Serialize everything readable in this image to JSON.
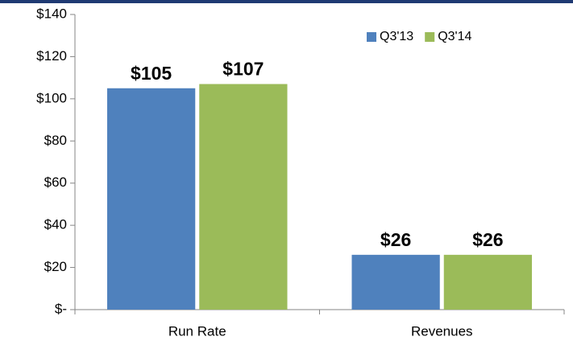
{
  "chart_data": {
    "type": "bar",
    "categories": [
      "Run Rate",
      "Revenues"
    ],
    "series": [
      {
        "name": "Q3'13",
        "color": "#4f81bd",
        "values": [
          105,
          26
        ],
        "value_labels": [
          "$105",
          "$26"
        ]
      },
      {
        "name": "Q3'14",
        "color": "#9bbb59",
        "values": [
          107,
          26
        ],
        "value_labels": [
          "$107",
          "$26"
        ]
      }
    ],
    "ylim": [
      0,
      140
    ],
    "yticks": [
      {
        "value": 0,
        "label": "$-"
      },
      {
        "value": 20,
        "label": "$20"
      },
      {
        "value": 40,
        "label": "$40"
      },
      {
        "value": 60,
        "label": "$60"
      },
      {
        "value": 80,
        "label": "$80"
      },
      {
        "value": 100,
        "label": "$100"
      },
      {
        "value": 120,
        "label": "$120"
      },
      {
        "value": 140,
        "label": "$140"
      }
    ],
    "grid": false,
    "legend": "top-right"
  }
}
